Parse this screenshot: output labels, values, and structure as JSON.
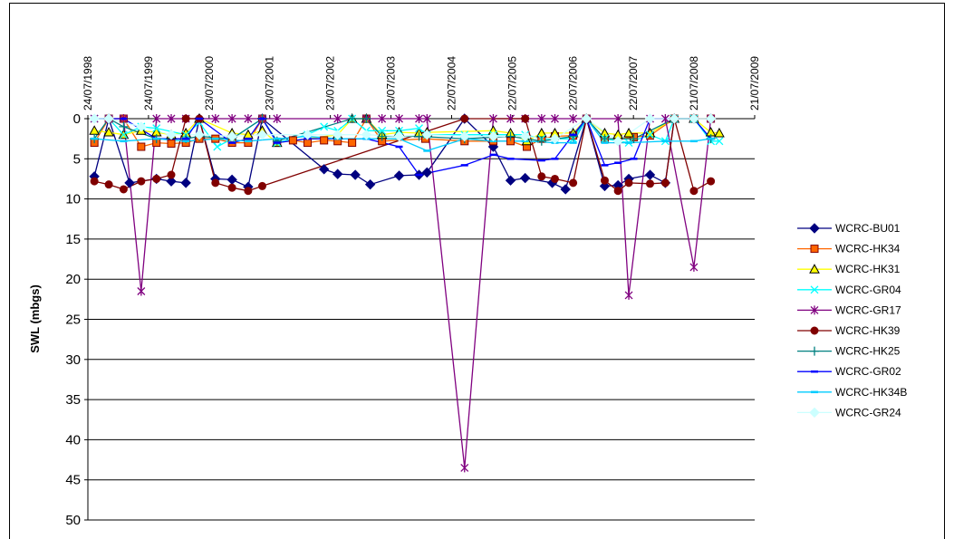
{
  "chart_data": {
    "type": "line",
    "y_label": "SWL (mbgs)",
    "xlim": [
      "1998-07-24",
      "2009-07-21"
    ],
    "xticks": [
      {
        "value": "1998-07-24",
        "label": "24/07/1998"
      },
      {
        "value": "1999-07-24",
        "label": "24/07/1999"
      },
      {
        "value": "2000-07-23",
        "label": "23/07/2000"
      },
      {
        "value": "2001-07-23",
        "label": "23/07/2001"
      },
      {
        "value": "2002-07-23",
        "label": "23/07/2002"
      },
      {
        "value": "2003-07-23",
        "label": "23/07/2003"
      },
      {
        "value": "2004-07-22",
        "label": "22/07/2004"
      },
      {
        "value": "2005-07-22",
        "label": "22/07/2005"
      },
      {
        "value": "2006-07-22",
        "label": "22/07/2006"
      },
      {
        "value": "2007-07-22",
        "label": "22/07/2007"
      },
      {
        "value": "2008-07-21",
        "label": "21/07/2008"
      },
      {
        "value": "2009-07-21",
        "label": "21/07/2009"
      }
    ],
    "ylim": [
      0,
      50
    ],
    "y_inverted": true,
    "yticks": [
      0,
      5,
      10,
      15,
      20,
      25,
      30,
      35,
      40,
      45,
      50
    ],
    "grid": true,
    "legend": "right",
    "series": [
      {
        "name": "WCRC-BU01",
        "color": "#000080",
        "marker": "diamond",
        "x": [
          "1998-09-01",
          "1998-11-27",
          "1999-04-01",
          "1999-09-10",
          "1999-12-08",
          "2000-03-05",
          "2000-05-25",
          "2000-08-30",
          "2000-12-08",
          "2001-03-15",
          "2001-06-08",
          "2002-06-15",
          "2002-09-05",
          "2002-12-20",
          "2003-03-20",
          "2003-09-10",
          "2004-01-08",
          "2004-02-25",
          "2004-10-08",
          "2005-03-30",
          "2005-07-12",
          "2005-10-08",
          "2006-03-20",
          "2006-06-08",
          "2006-10-12",
          "2007-01-30",
          "2007-04-20",
          "2007-06-24",
          "2007-10-30",
          "2008-01-30",
          "2008-03-24",
          "2008-07-20",
          "2008-10-30"
        ],
        "values": [
          7.2,
          0,
          8,
          7.5,
          7.8,
          8,
          0,
          7.5,
          7.6,
          8.5,
          0,
          6.3,
          6.9,
          7,
          8.2,
          7.1,
          7,
          6.7,
          0,
          3.5,
          7.7,
          7.4,
          8,
          8.8,
          0,
          8.4,
          8.3,
          7.5,
          7,
          8,
          0,
          0,
          0
        ]
      },
      {
        "name": "WCRC-HK34",
        "color": "#ff6600",
        "marker": "square",
        "marker_edge": "#800000",
        "x": [
          "1998-09-01",
          "1998-11-27",
          "1999-02-24",
          "1999-06-10",
          "1999-09-10",
          "1999-12-08",
          "2000-03-05",
          "2000-05-25",
          "2000-08-30",
          "2000-12-08",
          "2001-03-15",
          "2001-06-08",
          "2001-09-05",
          "2001-12-10",
          "2002-03-08",
          "2002-06-15",
          "2002-09-05",
          "2002-12-01",
          "2003-02-25",
          "2003-05-30",
          "2004-02-15",
          "2004-10-08",
          "2005-03-30",
          "2005-07-12",
          "2005-10-18",
          "2006-01-15",
          "2006-04-05",
          "2006-07-24",
          "2006-10-12",
          "2007-01-30",
          "2007-04-20",
          "2007-07-24",
          "2007-10-30",
          "2008-03-24",
          "2008-07-20",
          "2008-10-30"
        ],
        "values": [
          3,
          0,
          0,
          3.5,
          3,
          3.1,
          3,
          2.5,
          2.5,
          3,
          3,
          0,
          3,
          2.7,
          3,
          2.7,
          2.8,
          3,
          0,
          2.8,
          2.5,
          2.8,
          2.8,
          2.8,
          3.5,
          2.5,
          2.2,
          2.1,
          0,
          2.5,
          2.5,
          2.3,
          2.1,
          0,
          0,
          0
        ]
      },
      {
        "name": "WCRC-HK31",
        "color": "#ffff00",
        "marker": "triangle",
        "marker_edge": "#000000",
        "x": [
          "1998-09-01",
          "1998-11-27",
          "1999-02-24",
          "1999-06-10",
          "1999-09-10",
          "1999-12-08",
          "2000-03-05",
          "2000-05-25",
          "2000-12-08",
          "2001-03-15",
          "2001-06-08",
          "2001-09-05",
          "2002-09-05",
          "2002-12-01",
          "2003-02-25",
          "2003-05-30",
          "2003-09-10",
          "2004-01-08",
          "2004-02-25",
          "2005-03-30",
          "2005-07-12",
          "2005-10-18",
          "2006-01-15",
          "2006-04-05",
          "2006-07-24",
          "2006-10-12",
          "2007-01-30",
          "2007-04-20",
          "2007-06-24",
          "2007-10-30",
          "2008-03-24",
          "2008-07-20",
          "2008-10-30",
          "2008-12-20"
        ],
        "values": [
          1.5,
          1.7,
          2,
          1.5,
          1.7,
          2,
          1.8,
          0,
          1.8,
          2,
          1.5,
          3,
          2,
          0,
          0,
          2,
          1.7,
          1.8,
          1.7,
          1.5,
          1.8,
          2.8,
          1.8,
          1.8,
          1.8,
          0,
          1.8,
          2,
          1.8,
          1.8,
          0,
          0,
          1.7,
          1.8
        ]
      },
      {
        "name": "WCRC-GR04",
        "color": "#00ffff",
        "marker": "x",
        "x": [
          "1998-09-01",
          "1998-11-27",
          "1999-02-24",
          "1999-06-10",
          "1999-09-10",
          "2000-03-05",
          "2000-05-25",
          "2000-09-10",
          "2000-12-08",
          "2001-06-08",
          "2001-09-05",
          "2002-03-08",
          "2002-06-15",
          "2002-09-05",
          "2002-12-01",
          "2003-02-25",
          "2003-05-30",
          "2003-09-10",
          "2004-01-08",
          "2004-02-25",
          "2004-10-08",
          "2005-03-30",
          "2005-10-08",
          "2006-01-15",
          "2006-07-24",
          "2006-10-12",
          "2007-01-30",
          "2007-06-24",
          "2007-10-30",
          "2008-01-30",
          "2008-03-24",
          "2008-07-20",
          "2008-10-30",
          "2008-12-20"
        ],
        "values": [
          0,
          0,
          2,
          1,
          1.2,
          2,
          0.5,
          3.5,
          2.5,
          0,
          3,
          2,
          1,
          1.5,
          0,
          1.5,
          1.5,
          1.5,
          1.2,
          2,
          2,
          2,
          2,
          2.5,
          2.5,
          0,
          2.5,
          3,
          2,
          2.8,
          0,
          0,
          2.8,
          2.8
        ]
      },
      {
        "name": "WCRC-GR17",
        "color": "#800080",
        "marker": "asterisk",
        "x": [
          "1998-09-01",
          "1998-11-27",
          "1999-02-24",
          "1999-06-10",
          "1999-09-10",
          "1999-12-08",
          "2000-03-05",
          "2000-08-30",
          "2000-12-08",
          "2001-03-15",
          "2001-06-08",
          "2001-09-05",
          "2002-09-05",
          "2003-02-25",
          "2003-05-30",
          "2003-09-10",
          "2004-01-08",
          "2004-02-25",
          "2004-10-08",
          "2005-03-30",
          "2005-07-12",
          "2005-10-08",
          "2006-01-15",
          "2006-04-05",
          "2006-07-24",
          "2006-10-12",
          "2007-04-20",
          "2007-06-24",
          "2007-10-30",
          "2008-01-30",
          "2008-07-20",
          "2008-10-30"
        ],
        "values": [
          0,
          0,
          0,
          21.5,
          0,
          0,
          0,
          0,
          0,
          0,
          0,
          0,
          0,
          0,
          0,
          0,
          0,
          0,
          43.5,
          0,
          0,
          0,
          0,
          0,
          0,
          0,
          0,
          22,
          0,
          0,
          18.5,
          0
        ]
      },
      {
        "name": "WCRC-HK39",
        "color": "#800000",
        "marker": "circle",
        "x": [
          "1998-09-01",
          "1998-11-27",
          "1999-02-24",
          "1999-06-10",
          "1999-09-10",
          "1999-12-08",
          "2000-03-05",
          "2000-05-25",
          "2000-08-30",
          "2000-12-08",
          "2001-03-15",
          "2001-06-08",
          "2004-10-08",
          "2005-10-08",
          "2006-01-15",
          "2006-04-05",
          "2006-07-24",
          "2006-10-12",
          "2007-01-30",
          "2007-04-20",
          "2007-06-24",
          "2007-10-30",
          "2008-01-30",
          "2008-03-24",
          "2008-07-20",
          "2008-10-30"
        ],
        "values": [
          7.8,
          8.2,
          8.8,
          7.8,
          7.5,
          7,
          0,
          0,
          8,
          8.6,
          9,
          8.4,
          0,
          0,
          7.2,
          7.5,
          8,
          0,
          7.7,
          9,
          8,
          8.1,
          8,
          0,
          9,
          7.8
        ]
      },
      {
        "name": "WCRC-HK25",
        "color": "#008080",
        "marker": "plus",
        "x": [
          "1998-09-01",
          "1998-11-27",
          "1999-02-24",
          "1999-09-10",
          "2000-03-05",
          "2000-05-25",
          "2000-12-08",
          "2001-06-08",
          "2001-09-05",
          "2002-12-01",
          "2003-02-25",
          "2003-05-30",
          "2004-01-08",
          "2004-10-08",
          "2005-07-12",
          "2006-01-15",
          "2006-07-24",
          "2006-10-12",
          "2007-01-30",
          "2007-07-24",
          "2008-03-24",
          "2008-07-20",
          "2008-10-30"
        ],
        "values": [
          2.5,
          0,
          1,
          2.5,
          2.5,
          2.2,
          2.5,
          0,
          2.8,
          0,
          0,
          2.2,
          2.2,
          2.5,
          2.2,
          2.8,
          2.2,
          0,
          2.5,
          2.5,
          0,
          0,
          2.5
        ]
      },
      {
        "name": "WCRC-GR02",
        "color": "#0000ff",
        "marker": "dash",
        "x": [
          "1998-09-01",
          "1998-11-27",
          "1999-02-24",
          "1999-09-10",
          "2000-03-05",
          "2000-05-25",
          "2000-12-08",
          "2001-03-15",
          "2001-06-08",
          "2001-09-05",
          "2002-03-08",
          "2002-09-05",
          "2003-02-25",
          "2003-09-10",
          "2004-01-08",
          "2004-10-08",
          "2005-03-30",
          "2005-07-12",
          "2006-01-15",
          "2006-04-05",
          "2006-07-24",
          "2006-10-12",
          "2007-01-30",
          "2007-04-20",
          "2007-07-24",
          "2007-10-30",
          "2008-03-24",
          "2008-07-20",
          "2008-10-30"
        ],
        "values": [
          0,
          0,
          0,
          2.5,
          2.5,
          0,
          3,
          2.5,
          0,
          3,
          2.5,
          2.5,
          2.5,
          3.5,
          7,
          5.8,
          4.5,
          5,
          5.2,
          5,
          2,
          0,
          5.8,
          5.5,
          5,
          0,
          0,
          0,
          2.5
        ]
      },
      {
        "name": "WCRC-HK34B",
        "color": "#00ccff",
        "marker": "dash",
        "x": [
          "1998-09-01",
          "1999-02-24",
          "1999-09-10",
          "2000-03-05",
          "2000-08-30",
          "2001-03-15",
          "2001-09-05",
          "2002-03-08",
          "2002-09-05",
          "2003-02-25",
          "2003-09-10",
          "2004-02-25",
          "2004-10-08",
          "2005-03-30",
          "2005-10-08",
          "2006-04-05",
          "2006-07-24",
          "2006-10-12",
          "2007-01-30",
          "2007-06-24",
          "2008-01-30",
          "2008-07-20",
          "2008-10-30"
        ],
        "values": [
          2.5,
          2.8,
          2.5,
          2.8,
          2.5,
          2.8,
          2.5,
          2.2,
          2.5,
          2.5,
          2.5,
          4,
          2.5,
          2.8,
          2.8,
          3,
          3,
          0,
          3,
          3,
          2.8,
          2.8,
          2.5
        ]
      },
      {
        "name": "WCRC-GR24",
        "color": "#ccffff",
        "marker": "diamond",
        "x": [
          "1998-09-01",
          "1998-11-27",
          "1999-06-10",
          "1999-12-08",
          "2000-05-25",
          "2000-12-08",
          "2001-06-08",
          "2002-03-08",
          "2002-09-05",
          "2003-02-25",
          "2003-09-10",
          "2004-02-25",
          "2004-10-08",
          "2005-03-30",
          "2005-10-08",
          "2006-04-05",
          "2006-10-12",
          "2007-04-20",
          "2007-10-30",
          "2008-03-24",
          "2008-07-20",
          "2008-10-30"
        ],
        "values": [
          0,
          0,
          1,
          2,
          2,
          2.2,
          2,
          2,
          2,
          2,
          2.2,
          2,
          2.2,
          2.2,
          2.2,
          2.5,
          0,
          2.8,
          0,
          0,
          0,
          0
        ]
      }
    ]
  }
}
